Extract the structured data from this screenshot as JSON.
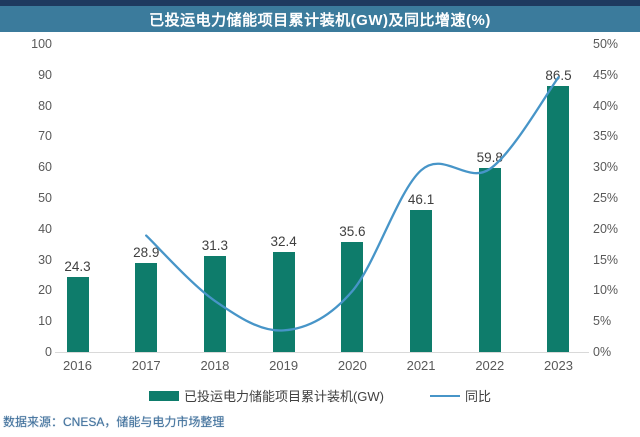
{
  "header": {
    "title": "已投运电力储能项目累计装机(GW)及同比增速(%)"
  },
  "chart_data": {
    "type": "bar",
    "subtype": "bar-line-combo-dual-axis",
    "title": "已投运电力储能项目累计装机(GW)及同比增速(%)",
    "categories": [
      "2016",
      "2017",
      "2018",
      "2019",
      "2020",
      "2021",
      "2022",
      "2023"
    ],
    "series": [
      {
        "name": "已投运电力储能项目累计装机(GW)",
        "type": "bar",
        "axis": "left",
        "color": "#0e7c6b",
        "values": [
          24.3,
          28.9,
          31.3,
          32.4,
          35.6,
          46.1,
          59.8,
          86.5
        ],
        "data_labels": [
          "24.3",
          "28.9",
          "31.3",
          "32.4",
          "35.6",
          "46.1",
          "59.8",
          "86.5"
        ]
      },
      {
        "name": "同比",
        "type": "line",
        "axis": "right",
        "color": "#4795c8",
        "values": [
          null,
          18.9,
          8.3,
          3.5,
          9.9,
          29.5,
          29.7,
          44.6
        ],
        "values_estimated_from_curve": true
      }
    ],
    "left_axis": {
      "min": 0,
      "max": 100,
      "step": 10,
      "ticks": [
        "0",
        "10",
        "20",
        "30",
        "40",
        "50",
        "60",
        "70",
        "80",
        "90",
        "100"
      ]
    },
    "right_axis": {
      "min": 0,
      "max": 50,
      "step": 5,
      "ticks": [
        "0%",
        "5%",
        "10%",
        "15%",
        "20%",
        "25%",
        "30%",
        "35%",
        "40%",
        "45%",
        "50%"
      ]
    },
    "grid": false,
    "legend_position": "bottom"
  },
  "footer": {
    "source_note": "数据来源：CNESA，储能与电力市场整理"
  },
  "colors": {
    "top_strip": "#1e3a5f",
    "header_bar": "#3b7b9c",
    "bar": "#0e7c6b",
    "line": "#4795c8",
    "axis_text": "#595959",
    "data_label": "#3f3f3f",
    "axis_line": "#d9d9d9",
    "source_text": "#41719c"
  }
}
